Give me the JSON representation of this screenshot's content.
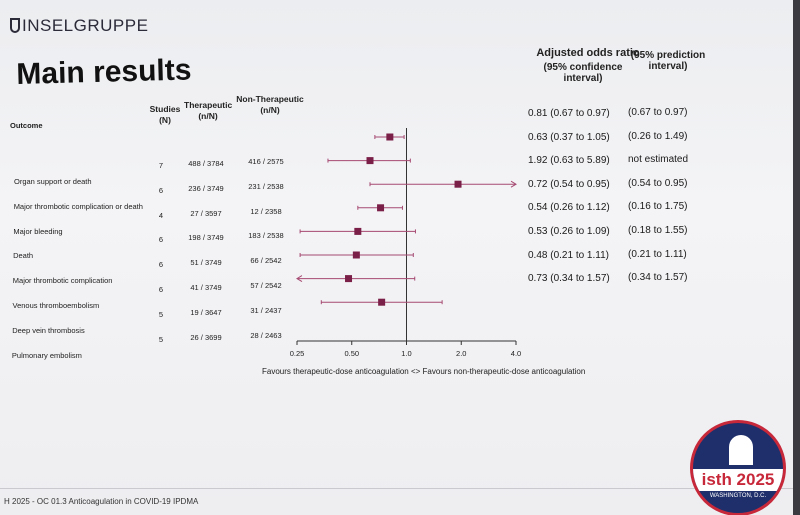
{
  "slide": {
    "logo": "INSELGRUPPE",
    "title": "Main results",
    "footer": "H 2025 - OC 01.3 Anticoagulation in COVID-19 IPDMA",
    "congress_brand": "isth 2025",
    "congress_sub": "WASHINGTON, D.C."
  },
  "headers": {
    "outcome": "Outcome",
    "studies": "Studies (N)",
    "therapeutic": "Therapeutic (n/N)",
    "non_therapeutic": "Non-Therapeutic (n/N)",
    "adjusted": "Adjusted odds ratio",
    "ci": "(95% confidence interval)",
    "pi": "(95% prediction interval)"
  },
  "colors": {
    "marker": "#7a1f47",
    "line": "#a64a72",
    "axis": "#333333"
  },
  "chart_data": {
    "type": "forest",
    "x_scale": "log",
    "xlim": [
      0.25,
      4.0
    ],
    "x_ticks": [
      "0.25",
      "0.50",
      "1.0",
      "2.0",
      "4.0"
    ],
    "xlabel": "Favours therapeutic-dose anticoagulation <> Favours non-therapeutic-dose anticoagulation",
    "rows": [
      {
        "outcome": "Organ support or death",
        "studies": "7",
        "therapeutic": "488 / 3784",
        "non_therapeutic": "416 / 2575",
        "or": 0.81,
        "ci_low": 0.67,
        "ci_high": 0.97,
        "or_text": "0.81 (0.67 to 0.97)",
        "pi_text": "(0.67 to 0.97)"
      },
      {
        "outcome": "Major thrombotic complication or death",
        "studies": "6",
        "therapeutic": "236 / 3749",
        "non_therapeutic": "231 / 2538",
        "or": 0.63,
        "ci_low": 0.37,
        "ci_high": 1.05,
        "or_text": "0.63 (0.37 to 1.05)",
        "pi_text": "(0.26 to 1.49)"
      },
      {
        "outcome": "Major bleeding",
        "studies": "4",
        "therapeutic": "27 / 3597",
        "non_therapeutic": "12 / 2358",
        "or": 1.92,
        "ci_low": 0.63,
        "ci_high": 5.89,
        "or_text": "1.92 (0.63 to 5.89)",
        "pi_text": "not estimated"
      },
      {
        "outcome": "Death",
        "studies": "6",
        "therapeutic": "198 / 3749",
        "non_therapeutic": "183 / 2538",
        "or": 0.72,
        "ci_low": 0.54,
        "ci_high": 0.95,
        "or_text": "0.72 (0.54 to 0.95)",
        "pi_text": "(0.54 to 0.95)"
      },
      {
        "outcome": "Major thrombotic complication",
        "studies": "6",
        "therapeutic": "51 / 3749",
        "non_therapeutic": "66 / 2542",
        "or": 0.54,
        "ci_low": 0.26,
        "ci_high": 1.12,
        "or_text": "0.54 (0.26 to 1.12)",
        "pi_text": "(0.16 to 1.75)"
      },
      {
        "outcome": "Venous thromboembolism",
        "studies": "6",
        "therapeutic": "41 / 3749",
        "non_therapeutic": "57 / 2542",
        "or": 0.53,
        "ci_low": 0.26,
        "ci_high": 1.09,
        "or_text": "0.53 (0.26 to 1.09)",
        "pi_text": "(0.18 to 1.55)"
      },
      {
        "outcome": "Deep vein thrombosis",
        "studies": "5",
        "therapeutic": "19 / 3647",
        "non_therapeutic": "31 / 2437",
        "or": 0.48,
        "ci_low": 0.21,
        "ci_high": 1.11,
        "or_text": "0.48 (0.21 to 1.11)",
        "pi_text": "(0.21 to 1.11)"
      },
      {
        "outcome": "Pulmonary embolism",
        "studies": "5",
        "therapeutic": "26 / 3699",
        "non_therapeutic": "28 / 2463",
        "or": 0.73,
        "ci_low": 0.34,
        "ci_high": 1.57,
        "or_text": "0.73 (0.34 to 1.57)",
        "pi_text": "(0.34 to 1.57)"
      }
    ]
  }
}
